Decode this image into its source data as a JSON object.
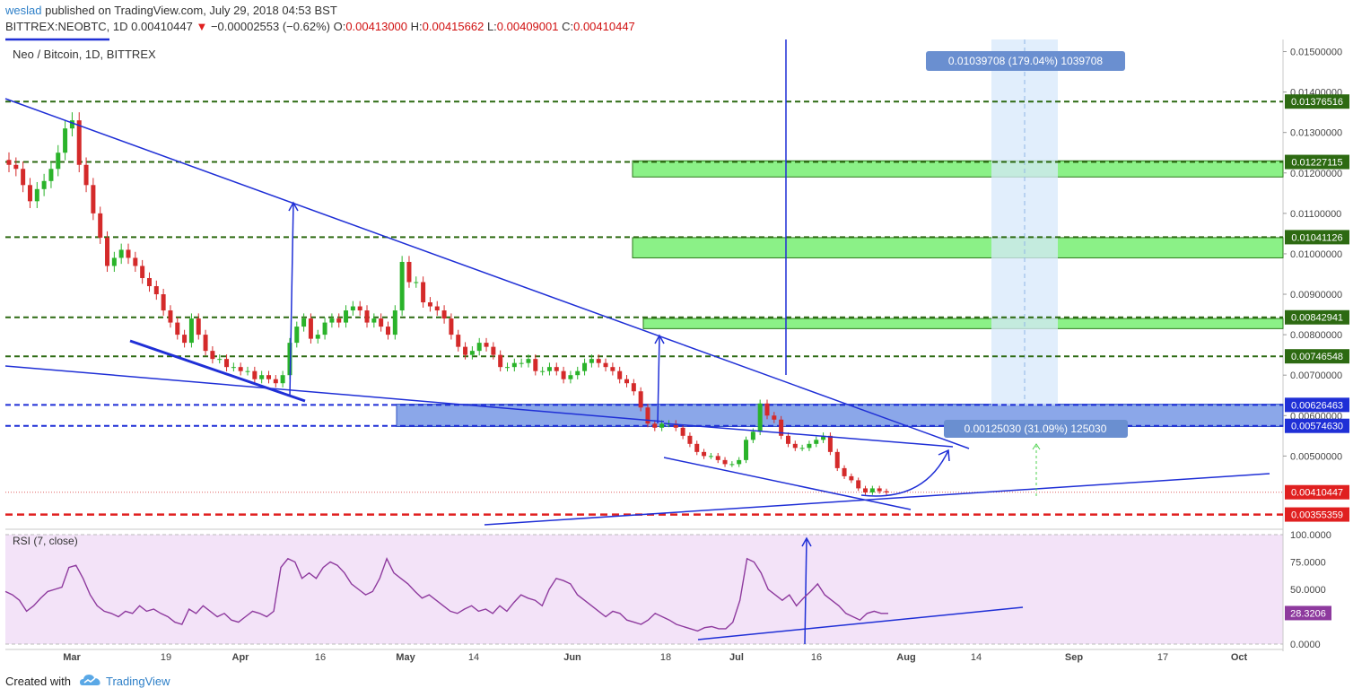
{
  "header": {
    "author": "weslad",
    "published": "published on TradingView.com, July 29, 2018 04:53 BST",
    "symbol": "BITTREX:NEOBTC, 1D",
    "last": "0.00410447",
    "change": "−0.00002553 (−0.62%)",
    "o_label": "O:",
    "o": "0.00413000",
    "h_label": "H:",
    "h": "0.00415662",
    "l_label": "L:",
    "l": "0.00409001",
    "c_label": "C:",
    "c": "0.00410447"
  },
  "legend": {
    "main": "Neo / Bitcoin, 1D, BITTREX",
    "rsi": "RSI (7, close)"
  },
  "footer": {
    "created": "Created with",
    "brand": "TradingView"
  },
  "colors": {
    "up": "#2ab32a",
    "down": "#d42a2a",
    "trend": "#1f2fd6",
    "zone_green": "#7ef07a",
    "zone_blue": "#5a82e0",
    "rsi_line": "#8e3a9e",
    "rsi_bg": "#f3e3f8",
    "level_green": "#2d6a12",
    "level_blue": "#1f2fd6",
    "level_red": "#e02020"
  },
  "annotations": {
    "measure_top": "0.01039708 (179.04%) 1039708",
    "measure_bottom": "0.00125030 (31.09%) 125030"
  },
  "chart_data": [
    {
      "type": "candlestick",
      "title": "Neo / Bitcoin, 1D, BITTREX",
      "y_ticks": [
        "0.01500000",
        "0.01400000",
        "0.01300000",
        "0.01200000",
        "0.01100000",
        "0.01000000",
        "0.00900000",
        "0.00800000",
        "0.00700000",
        "0.00600000",
        "0.00500000"
      ],
      "x_ticks": [
        "Mar",
        "19",
        "Apr",
        "16",
        "May",
        "14",
        "Jun",
        "18",
        "Jul",
        "16",
        "Aug",
        "14",
        "Sep",
        "17",
        "Oct"
      ],
      "price_labels": [
        {
          "value": "0.01376516",
          "kind": "green"
        },
        {
          "value": "0.01227115",
          "kind": "green"
        },
        {
          "value": "0.01041126",
          "kind": "green"
        },
        {
          "value": "0.00842941",
          "kind": "green"
        },
        {
          "value": "0.00746548",
          "kind": "green"
        },
        {
          "value": "0.00626463",
          "kind": "blue"
        },
        {
          "value": "0.00574630",
          "kind": "blue"
        },
        {
          "value": "0.00410447",
          "kind": "last"
        },
        {
          "value": "0.00355359",
          "kind": "red"
        }
      ],
      "levels": {
        "green": [
          0.01376516,
          0.01227115,
          0.01041126,
          0.00842941,
          0.00746548
        ],
        "blue": [
          0.00626463,
          0.0057463
        ],
        "red": [
          0.00355359
        ],
        "last": 0.00410447
      },
      "zones": [
        {
          "kind": "green",
          "from": 0.0119,
          "to": 0.0123
        },
        {
          "kind": "green",
          "from": 0.0099,
          "to": 0.0104
        },
        {
          "kind": "green",
          "from": 0.00815,
          "to": 0.0084
        },
        {
          "kind": "blue",
          "from": 0.00573,
          "to": 0.00628
        }
      ],
      "closes": [
        0.0122,
        0.0121,
        0.0117,
        0.0113,
        0.0116,
        0.0118,
        0.0121,
        0.0125,
        0.0131,
        0.0133,
        0.0122,
        0.0117,
        0.011,
        0.0104,
        0.0097,
        0.0099,
        0.0101,
        0.0099,
        0.0097,
        0.0094,
        0.0092,
        0.009,
        0.0086,
        0.0083,
        0.008,
        0.0078,
        0.0084,
        0.008,
        0.0076,
        0.0074,
        0.0074,
        0.0072,
        0.0072,
        0.0071,
        0.0071,
        0.0069,
        0.007,
        0.0069,
        0.0068,
        0.007,
        0.0078,
        0.0082,
        0.0084,
        0.0079,
        0.008,
        0.0083,
        0.0084,
        0.0083,
        0.0086,
        0.0087,
        0.0086,
        0.0083,
        0.0084,
        0.0082,
        0.008,
        0.0086,
        0.0098,
        0.0093,
        0.0093,
        0.0088,
        0.0087,
        0.0086,
        0.0084,
        0.008,
        0.0077,
        0.0075,
        0.0076,
        0.0078,
        0.0077,
        0.0075,
        0.0072,
        0.0072,
        0.0073,
        0.0073,
        0.0074,
        0.0071,
        0.0071,
        0.0072,
        0.0071,
        0.0069,
        0.007,
        0.0071,
        0.0073,
        0.0074,
        0.0073,
        0.0072,
        0.0071,
        0.0069,
        0.0068,
        0.0066,
        0.0062,
        0.0058,
        0.0057,
        0.0058,
        0.0058,
        0.0057,
        0.0055,
        0.0053,
        0.0051,
        0.005,
        0.005,
        0.0049,
        0.0048,
        0.0048,
        0.0049,
        0.0054,
        0.0056,
        0.0063,
        0.006,
        0.0059,
        0.0055,
        0.0053,
        0.0052,
        0.0052,
        0.0053,
        0.0054,
        0.0055,
        0.0051,
        0.0047,
        0.0045,
        0.0044,
        0.0042,
        0.0041,
        0.0042,
        0.00413,
        0.0041
      ],
      "ylim": [
        0.0033,
        0.0153
      ]
    },
    {
      "type": "line",
      "title": "RSI (7, close)",
      "y_ticks": [
        "100.0000",
        "75.0000",
        "50.0000",
        "0.0000"
      ],
      "last_value": "28.3206",
      "values": [
        48,
        45,
        40,
        30,
        35,
        42,
        48,
        50,
        52,
        70,
        72,
        60,
        45,
        35,
        30,
        28,
        25,
        30,
        28,
        35,
        30,
        32,
        28,
        25,
        20,
        18,
        32,
        28,
        35,
        30,
        25,
        28,
        22,
        20,
        25,
        30,
        28,
        25,
        30,
        70,
        78,
        75,
        60,
        65,
        60,
        70,
        75,
        72,
        65,
        55,
        50,
        45,
        48,
        60,
        78,
        65,
        60,
        55,
        48,
        42,
        45,
        40,
        35,
        30,
        28,
        32,
        35,
        30,
        32,
        28,
        35,
        30,
        38,
        45,
        42,
        40,
        35,
        50,
        60,
        58,
        55,
        45,
        40,
        35,
        30,
        25,
        30,
        28,
        22,
        20,
        18,
        22,
        28,
        25,
        22,
        18,
        16,
        14,
        12,
        15,
        16,
        14,
        14,
        20,
        40,
        78,
        75,
        65,
        50,
        45,
        40,
        45,
        35,
        42,
        48,
        55,
        45,
        40,
        35,
        28,
        25,
        22,
        28,
        30,
        28,
        28
      ],
      "ylim": [
        0,
        100
      ]
    }
  ]
}
